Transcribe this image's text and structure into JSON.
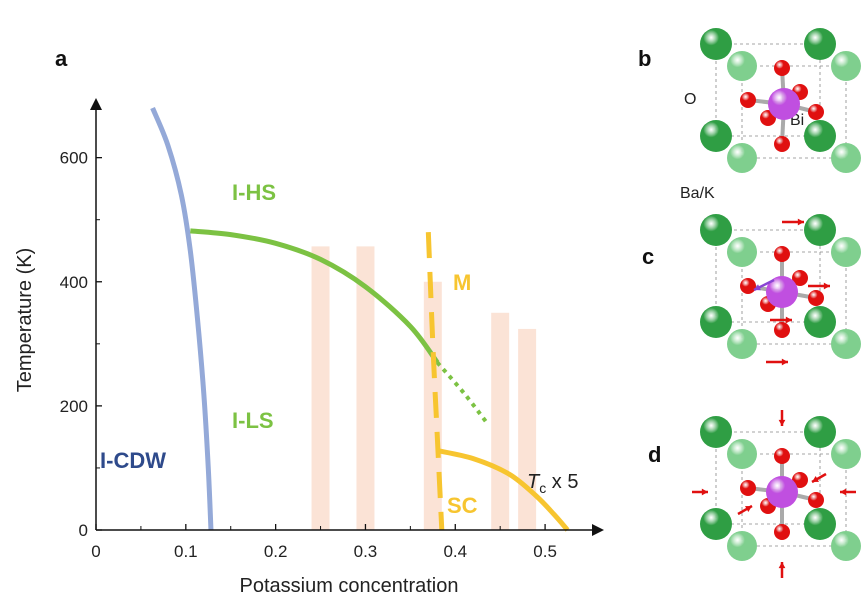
{
  "panels": {
    "a": "a",
    "b": "b",
    "c": "c",
    "d": "d"
  },
  "chart_data": {
    "type": "line",
    "xlabel": "Potassium concentration",
    "ylabel": "Temperature (K)",
    "xlim": [
      0,
      0.55
    ],
    "ylim": [
      0,
      680
    ],
    "xticks": [
      "0",
      "0.1",
      "0.2",
      "0.3",
      "0.4",
      "0.5"
    ],
    "yticks": [
      "0",
      "200",
      "400",
      "600"
    ],
    "regions": {
      "icdw": {
        "label": "I-CDW",
        "color": "#2e4a8b"
      },
      "ihs": {
        "label": "I-HS",
        "color": "#7cc243"
      },
      "ils": {
        "label": "I-LS",
        "color": "#7cc243"
      },
      "m": {
        "label": "M",
        "color": "#f7c530"
      },
      "sc": {
        "label": "SC",
        "color": "#f7c530"
      }
    },
    "tc_note": {
      "symbol": "T",
      "subscript": "c",
      "rest": " x 5"
    },
    "series": [
      {
        "style": "solid",
        "color": "#94a9d8",
        "x": [
          0.063,
          0.08,
          0.095,
          0.105,
          0.113,
          0.12,
          0.125,
          0.128
        ],
        "y": [
          680,
          620,
          540,
          450,
          340,
          220,
          100,
          0
        ]
      },
      {
        "style": "solid",
        "color": "#7cc243",
        "x": [
          0.105,
          0.15,
          0.2,
          0.25,
          0.3,
          0.35,
          0.38
        ],
        "y": [
          482,
          476,
          462,
          436,
          392,
          328,
          270
        ]
      },
      {
        "style": "dotted",
        "color": "#7cc243",
        "x": [
          0.38,
          0.41,
          0.435
        ],
        "y": [
          270,
          220,
          173
        ]
      },
      {
        "style": "dashed",
        "color": "#f7c530",
        "x": [
          0.37,
          0.375,
          0.38,
          0.385
        ],
        "y": [
          480,
          300,
          150,
          0
        ]
      },
      {
        "style": "solid",
        "color": "#f7c530",
        "x": [
          0.38,
          0.42,
          0.46,
          0.49,
          0.51,
          0.525
        ],
        "y": [
          128,
          115,
          90,
          55,
          25,
          0
        ]
      }
    ],
    "bars": {
      "color": "#fbe3d6",
      "x": [
        0.25,
        0.3,
        0.375,
        0.45,
        0.48
      ],
      "values": [
        457,
        457,
        400,
        350,
        324
      ]
    }
  },
  "crystal": {
    "atom_labels": {
      "o": "O",
      "bi": "Bi",
      "ba_k": "Ba/K"
    },
    "colors": {
      "ba_k": "#2f9e44",
      "ba_k_light": "#7fcf8e",
      "oxygen": "#e01010",
      "bismuth": "#c04fe0",
      "arrow": "#e01010",
      "arrow_bi": "#8a44d4"
    }
  }
}
